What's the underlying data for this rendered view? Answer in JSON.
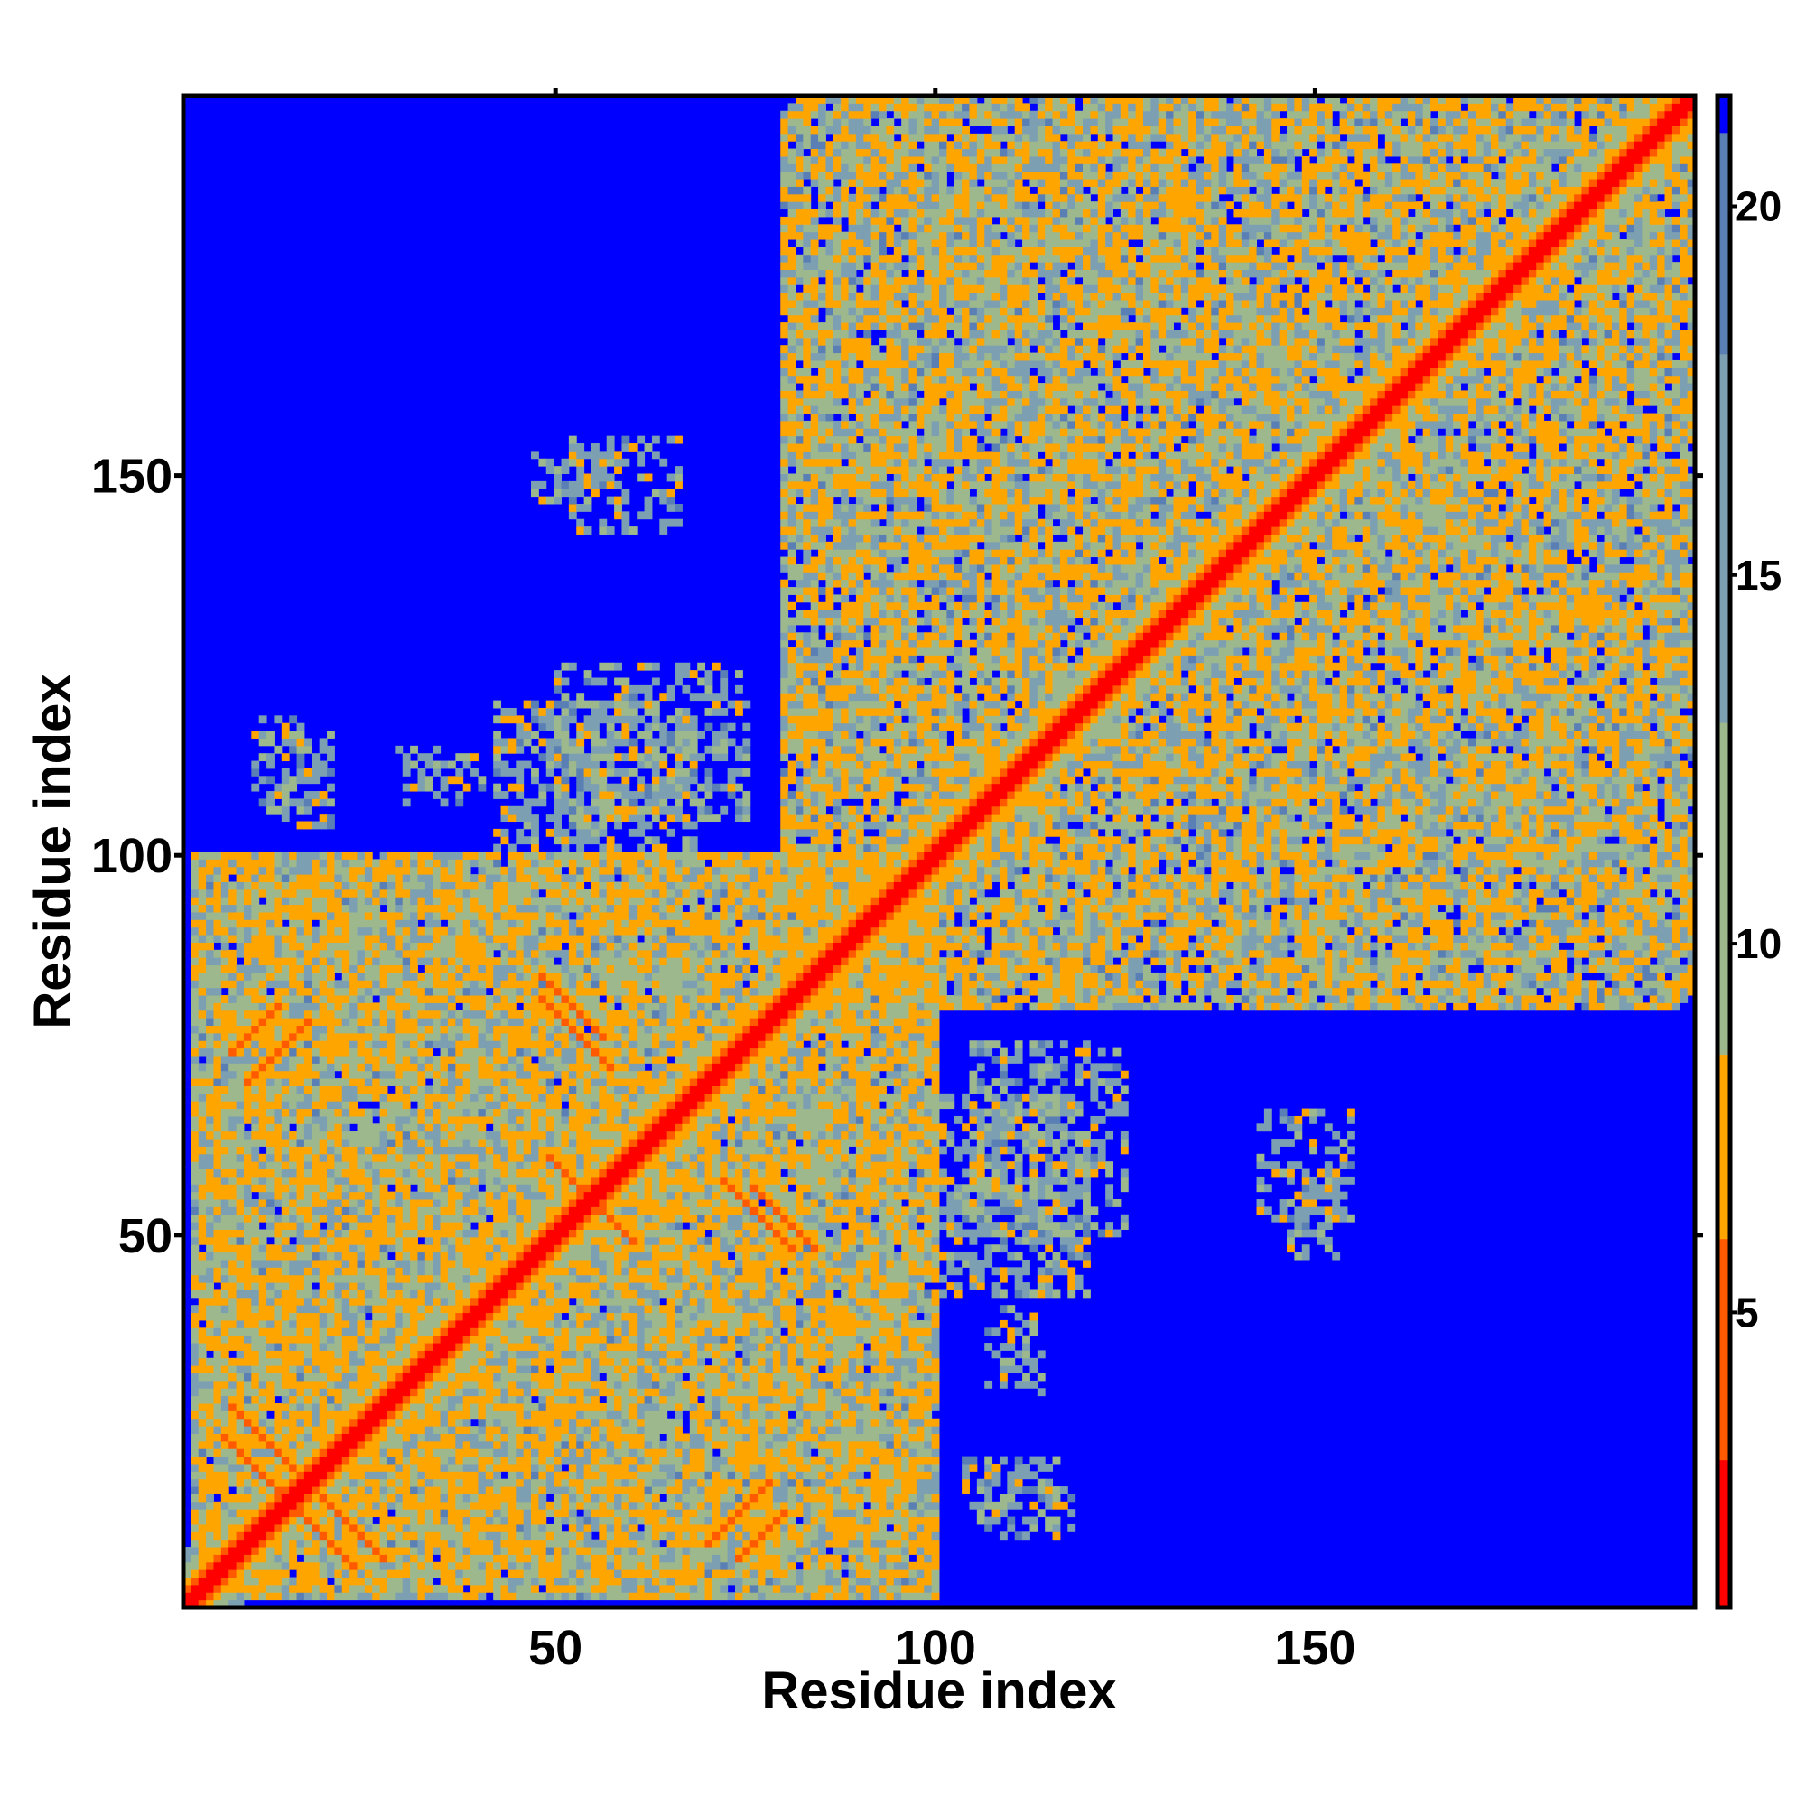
{
  "chart_data": {
    "type": "heatmap",
    "title": "",
    "xlabel": "Residue index",
    "ylabel": "Residue index",
    "xlim": [
      1,
      200
    ],
    "ylim": [
      1,
      200
    ],
    "x_ticks": [
      50,
      100,
      150
    ],
    "y_ticks": [
      50,
      100,
      150
    ],
    "x_tick_labels": [
      "50",
      "100",
      "150"
    ],
    "y_tick_labels": [
      "50",
      "100",
      "150"
    ],
    "grid": false,
    "colorbar": {
      "position": "right",
      "ticks": [
        5,
        10,
        15,
        20
      ],
      "tick_labels": [
        "5",
        "10",
        "15",
        "20"
      ],
      "range": [
        1,
        21.5
      ],
      "bands": [
        {
          "from": 1,
          "to": 3,
          "color": "#ff0000"
        },
        {
          "from": 3,
          "to": 6,
          "color": "#ff5a00"
        },
        {
          "from": 6,
          "to": 8.5,
          "color": "#ffa500"
        },
        {
          "from": 8.5,
          "to": 13,
          "color": "#9db88d"
        },
        {
          "from": 13,
          "to": 18,
          "color": "#7d9fb2"
        },
        {
          "from": 18,
          "to": 21,
          "color": "#5a7fb4"
        },
        {
          "from": 21,
          "to": 21.5,
          "color": "#0000ff"
        }
      ]
    },
    "background_value": 21.5,
    "background_color": "#0000ff",
    "description_of_values": "symmetric residue-residue distance map; diagonal band near 1-3, contact clusters 6-18, elsewhere saturated above 21",
    "diagonal_band": [
      {
        "offset": 0,
        "value": 1
      },
      {
        "offset": 1,
        "value": 2.5
      },
      {
        "offset": 2,
        "value": 5
      },
      {
        "offset": 3,
        "value": 6.5
      },
      {
        "offset": 4,
        "value": 9
      },
      {
        "offset": 5,
        "value": 11
      },
      {
        "offset": 6,
        "value": 14
      },
      {
        "offset": 7,
        "value": 17
      }
    ],
    "contact_regions": [
      {
        "x": [
          2,
          100
        ],
        "y": [
          2,
          100
        ],
        "density": 0.85,
        "min": 6,
        "max": 19
      },
      {
        "x": [
          80,
          200
        ],
        "y": [
          80,
          200
        ],
        "density": 0.75,
        "min": 6,
        "max": 19
      },
      {
        "x": [
          50,
          75
        ],
        "y": [
          105,
          125
        ],
        "density": 0.45,
        "min": 10,
        "max": 19
      },
      {
        "x": [
          10,
          16
        ],
        "y": [
          106,
          118
        ],
        "density": 0.45,
        "min": 10,
        "max": 19
      },
      {
        "x": [
          28,
          40
        ],
        "y": [
          109,
          114
        ],
        "density": 0.25,
        "min": 10,
        "max": 19
      },
      {
        "x": [
          47,
          57
        ],
        "y": [
          147,
          154
        ],
        "density": 0.35,
        "min": 12,
        "max": 19
      },
      {
        "x": [
          100,
          120
        ],
        "y": [
          42,
          68
        ],
        "density": 0.55,
        "min": 10,
        "max": 19
      },
      {
        "x": [
          107,
          113
        ],
        "y": [
          30,
          38
        ],
        "density": 0.3,
        "min": 12,
        "max": 19
      },
      {
        "x": [
          104,
          116
        ],
        "y": [
          14,
          20
        ],
        "density": 0.5,
        "min": 12,
        "max": 19
      },
      {
        "x": [
          143,
          155
        ],
        "y": [
          52,
          66
        ],
        "density": 0.4,
        "min": 12,
        "max": 19
      },
      {
        "x": [
          95,
          110
        ],
        "y": [
          165,
          188
        ],
        "density": 0.25,
        "min": 12,
        "max": 19
      }
    ],
    "strands": [
      {
        "x": [
          7,
          14
        ],
        "y": [
          74,
          80
        ],
        "dir": 1
      },
      {
        "x": [
          6,
          22
        ],
        "y": [
          14,
          23
        ],
        "dir": -1
      },
      {
        "x": [
          17,
          27
        ],
        "y": [
          7,
          17
        ],
        "dir": -1
      },
      {
        "x": [
          70,
          78
        ],
        "y": [
          9,
          18
        ],
        "dir": 1
      },
      {
        "x": [
          48,
          57
        ],
        "y": [
          76,
          84
        ],
        "dir": -1
      },
      {
        "x": [
          52,
          62
        ],
        "y": [
          49,
          57
        ],
        "dir": -1
      },
      {
        "x": [
          72,
          82
        ],
        "y": [
          48,
          57
        ],
        "dir": -1
      },
      {
        "x": [
          77,
          92
        ],
        "y": [
          76,
          84
        ],
        "dir": 1
      }
    ]
  }
}
